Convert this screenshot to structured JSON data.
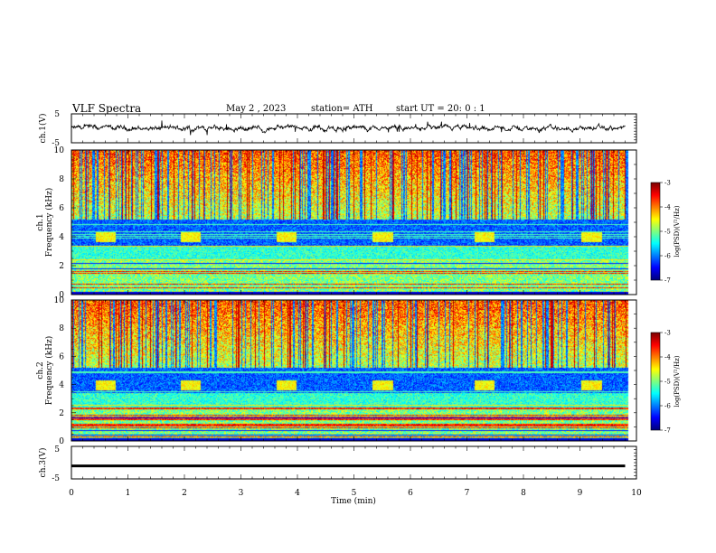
{
  "header": {
    "title": "VLF  Spectra",
    "date": "May 2  , 2023",
    "station": "station= ATH",
    "start": "start  UT  =    20: 0   : 1"
  },
  "chart_data": [
    {
      "type": "line",
      "ylabel": "ch.1(V)",
      "ylim": [
        -5,
        5
      ],
      "yticks": [
        "5",
        "-5"
      ],
      "xlim": [
        0,
        10
      ],
      "description_values": {
        "mean": 0.0,
        "amplitude": 1.0
      },
      "series_color": "#000000"
    },
    {
      "type": "heatmap",
      "ylabel_line1": "ch.1",
      "ylabel_line2": "Frequency  (kHz)",
      "ylim": [
        0,
        10
      ],
      "yticks": [
        "0",
        "2",
        "4",
        "6",
        "8",
        "10"
      ],
      "xlim": [
        0,
        10
      ],
      "burst_times_min": [
        0.6,
        2.1,
        3.8,
        5.5,
        7.3,
        9.2
      ],
      "burst_freq_khz": 4.0,
      "colorbar": {
        "label": "log(PSD)(V²/Hz)",
        "range": [
          -7,
          -3
        ],
        "ticks": [
          "-3",
          "-4",
          "-5",
          "-6",
          "-7"
        ]
      }
    },
    {
      "type": "heatmap",
      "ylabel_line1": "ch.2",
      "ylabel_line2": "Frequency  (kHz)",
      "ylim": [
        0,
        10
      ],
      "yticks": [
        "0",
        "2",
        "4",
        "6",
        "8",
        "10"
      ],
      "xlim": [
        0,
        10
      ],
      "burst_times_min": [
        0.6,
        2.1,
        3.8,
        5.5,
        7.3,
        9.2
      ],
      "burst_freq_khz": 4.0,
      "colorbar": {
        "label": "log(PSD)(V²/Hz)",
        "range": [
          -7,
          -3
        ],
        "ticks": [
          "-3",
          "-4",
          "-5",
          "-6",
          "-7"
        ]
      }
    },
    {
      "type": "line",
      "ylabel": "ch.3(V)",
      "ylim": [
        -5,
        5
      ],
      "yticks": [
        "5",
        "-5"
      ],
      "xlim": [
        0,
        10
      ],
      "description_values": {
        "level": -1.0
      },
      "series_color": "#000000"
    }
  ],
  "xaxis": {
    "label": "Time  (min)",
    "ticks": [
      "0",
      "1",
      "2",
      "3",
      "4",
      "5",
      "6",
      "7",
      "8",
      "9",
      "10"
    ]
  }
}
